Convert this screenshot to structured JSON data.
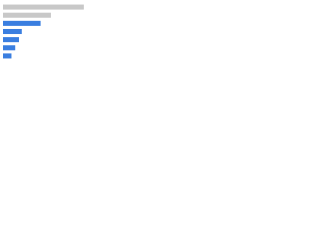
{
  "chart_data": {
    "type": "bar",
    "orientation": "horizontal",
    "categories": [
      null,
      null,
      null,
      null,
      null,
      null,
      null
    ],
    "values": [
      86,
      51,
      40,
      20,
      17,
      13,
      9
    ],
    "colors": [
      "#c8c8c8",
      "#c8c8c8",
      "#3a7ee0",
      "#3a7ee0",
      "#3a7ee0",
      "#3a7ee0",
      "#3a7ee0"
    ],
    "xlim": [
      0,
      100
    ]
  }
}
